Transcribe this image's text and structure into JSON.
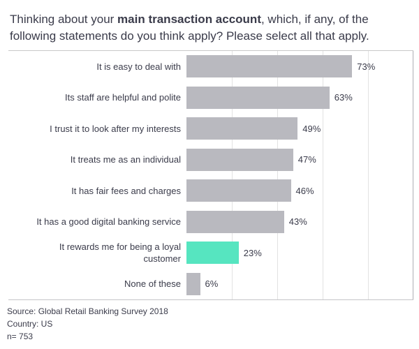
{
  "title": {
    "line1_prefix": "Thinking about your ",
    "line1_bold": "main transaction account",
    "line1_suffix": ", which, if any, of the",
    "line2": "following statements do you think apply? Please select all that apply."
  },
  "chart_data": {
    "type": "bar",
    "orientation": "horizontal",
    "title": "Thinking about your main transaction account, which, if any, of the following statements do you think apply? Please select all that apply.",
    "categories": [
      "It is easy to deal with",
      "Its staff are helpful and polite",
      "I trust it to look after my interests",
      "It treats me as an individual",
      "It has fair fees and charges",
      "It has a good digital banking service",
      "It rewards me for being a loyal customer",
      "None of these"
    ],
    "values": [
      73,
      63,
      49,
      47,
      46,
      43,
      23,
      6
    ],
    "value_labels": [
      "73%",
      "63%",
      "49%",
      "47%",
      "46%",
      "43%",
      "23%",
      "6%"
    ],
    "xlim": [
      0,
      100
    ],
    "gridline_interval_pct": 20,
    "grid": true,
    "legend": "none",
    "highlight_index": 6,
    "bar_color": "#b9b9bf",
    "highlight_color": "#56e5c0"
  },
  "colors": {
    "text": "#3a3b4a",
    "gridline": "#e2e2e2",
    "gridline_outer": "#aeaeb4",
    "plot_border": "#c8c8c8"
  },
  "footer": {
    "source": "Source: Global Retail Banking Survey 2018",
    "country": "Country: US",
    "sample": "n= 753"
  }
}
